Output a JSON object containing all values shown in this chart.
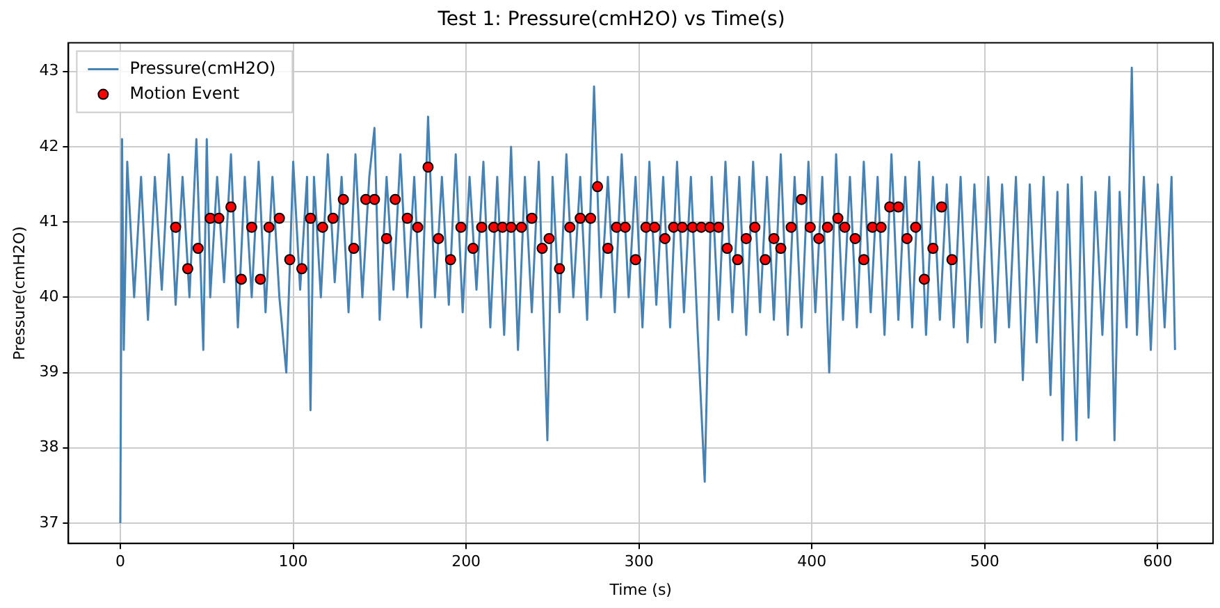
{
  "chart_data": {
    "type": "line",
    "title": "Test 1: Pressure(cmH2O) vs Time(s)",
    "xlabel": "Time (s)",
    "ylabel": "Pressure(cmH2O)",
    "xlim": [
      -30,
      632
    ],
    "ylim": [
      36.73,
      43.38
    ],
    "xticks": [
      0,
      100,
      200,
      300,
      400,
      500,
      600
    ],
    "yticks": [
      37,
      38,
      39,
      40,
      41,
      42,
      43
    ],
    "grid": true,
    "legend": "top left",
    "series": [
      {
        "name": "Pressure(cmH2O)",
        "color": "#4682b4",
        "marker": "none",
        "x": [
          0,
          1,
          2,
          4,
          8,
          12,
          16,
          20,
          24,
          28,
          32,
          36,
          40,
          44,
          48,
          50,
          52,
          56,
          60,
          64,
          68,
          72,
          76,
          80,
          84,
          88,
          92,
          96,
          100,
          104,
          108,
          110,
          112,
          116,
          120,
          124,
          128,
          132,
          136,
          140,
          144,
          147,
          150,
          154,
          158,
          162,
          166,
          170,
          174,
          178,
          182,
          186,
          190,
          194,
          198,
          202,
          206,
          210,
          214,
          218,
          222,
          226,
          230,
          234,
          238,
          242,
          247,
          250,
          254,
          258,
          262,
          266,
          270,
          274,
          278,
          282,
          286,
          290,
          294,
          298,
          302,
          306,
          310,
          314,
          318,
          322,
          326,
          330,
          334,
          338,
          342,
          346,
          350,
          354,
          358,
          362,
          366,
          370,
          374,
          378,
          382,
          386,
          390,
          394,
          398,
          402,
          406,
          410,
          414,
          418,
          422,
          426,
          430,
          434,
          438,
          442,
          446,
          450,
          454,
          458,
          462,
          466,
          470,
          474,
          478,
          482,
          486,
          490,
          494,
          498,
          502,
          506,
          510,
          514,
          518,
          522,
          526,
          530,
          534,
          538,
          542,
          545,
          548,
          553,
          556,
          560,
          564,
          568,
          572,
          575,
          578,
          582,
          585,
          588,
          592,
          596,
          600,
          604,
          608,
          610
        ],
        "values": [
          37.0,
          42.1,
          39.3,
          41.8,
          40.0,
          41.6,
          39.7,
          41.6,
          40.1,
          41.9,
          39.9,
          41.6,
          40.0,
          42.1,
          39.3,
          42.1,
          40.0,
          41.6,
          40.2,
          41.9,
          39.6,
          41.6,
          40.0,
          41.8,
          39.8,
          41.6,
          40.0,
          39.0,
          41.8,
          40.1,
          41.6,
          38.5,
          41.6,
          40.0,
          41.9,
          40.2,
          41.6,
          39.8,
          41.9,
          40.0,
          41.6,
          42.25,
          39.7,
          41.6,
          40.1,
          41.9,
          40.0,
          41.6,
          39.6,
          42.4,
          40.0,
          41.6,
          39.9,
          41.9,
          39.8,
          41.6,
          40.1,
          41.8,
          39.6,
          41.6,
          39.5,
          42.0,
          39.3,
          41.6,
          39.8,
          41.8,
          38.1,
          41.6,
          39.8,
          41.9,
          40.0,
          41.6,
          39.7,
          42.8,
          40.0,
          41.6,
          39.8,
          41.9,
          40.0,
          41.6,
          39.6,
          41.8,
          39.9,
          41.6,
          39.6,
          41.8,
          39.8,
          41.6,
          39.5,
          37.55,
          41.6,
          39.7,
          41.8,
          39.8,
          41.6,
          39.5,
          41.8,
          39.8,
          41.6,
          39.7,
          41.9,
          39.5,
          41.6,
          39.6,
          41.8,
          39.8,
          41.6,
          39.0,
          41.9,
          39.7,
          41.6,
          39.6,
          41.8,
          39.8,
          41.6,
          39.5,
          41.9,
          39.7,
          41.6,
          39.6,
          41.8,
          39.5,
          41.6,
          39.7,
          41.5,
          39.6,
          41.6,
          39.4,
          41.5,
          39.6,
          41.6,
          39.4,
          41.5,
          39.6,
          41.6,
          38.9,
          41.5,
          39.4,
          41.6,
          38.7,
          41.4,
          38.1,
          41.5,
          38.1,
          41.6,
          38.4,
          41.4,
          39.5,
          41.6,
          38.1,
          41.4,
          39.6,
          43.05,
          39.5,
          41.6,
          39.3,
          41.5,
          39.6,
          41.6,
          39.3
        ]
      },
      {
        "name": "Motion Event",
        "type": "scatter",
        "color": "#ff0000",
        "marker": "circle",
        "x": [
          32,
          39,
          45,
          52,
          57,
          64,
          70,
          76,
          81,
          86,
          92,
          98,
          105,
          110,
          117,
          123,
          129,
          135,
          142,
          147,
          154,
          159,
          166,
          172,
          178,
          184,
          191,
          197,
          204,
          209,
          216,
          221,
          226,
          232,
          238,
          244,
          248,
          254,
          260,
          266,
          272,
          276,
          282,
          287,
          292,
          298,
          304,
          309,
          315,
          320,
          325,
          331,
          336,
          341,
          346,
          351,
          357,
          362,
          367,
          373,
          378,
          382,
          388,
          394,
          399,
          404,
          409,
          415,
          419,
          425,
          430,
          435,
          440,
          445,
          450,
          455,
          460,
          465,
          470,
          475,
          481
        ],
        "values": [
          40.93,
          40.38,
          40.65,
          41.05,
          41.05,
          41.2,
          40.24,
          40.93,
          40.24,
          40.93,
          41.05,
          40.5,
          40.38,
          41.05,
          40.93,
          41.05,
          41.3,
          40.65,
          41.3,
          41.3,
          40.78,
          41.3,
          41.05,
          40.93,
          41.73,
          40.78,
          40.5,
          40.93,
          40.65,
          40.93,
          40.93,
          40.93,
          40.93,
          40.93,
          41.05,
          40.65,
          40.78,
          40.38,
          40.93,
          41.05,
          41.05,
          41.47,
          40.65,
          40.93,
          40.93,
          40.5,
          40.93,
          40.93,
          40.78,
          40.93,
          40.93,
          40.93,
          40.93,
          40.93,
          40.93,
          40.65,
          40.5,
          40.78,
          40.93,
          40.5,
          40.78,
          40.65,
          40.93,
          41.3,
          40.93,
          40.78,
          40.93,
          41.05,
          40.93,
          40.78,
          40.5,
          40.93,
          40.93,
          41.2,
          41.2,
          40.78,
          40.93,
          40.24,
          40.65,
          41.2,
          40.5
        ]
      }
    ]
  }
}
